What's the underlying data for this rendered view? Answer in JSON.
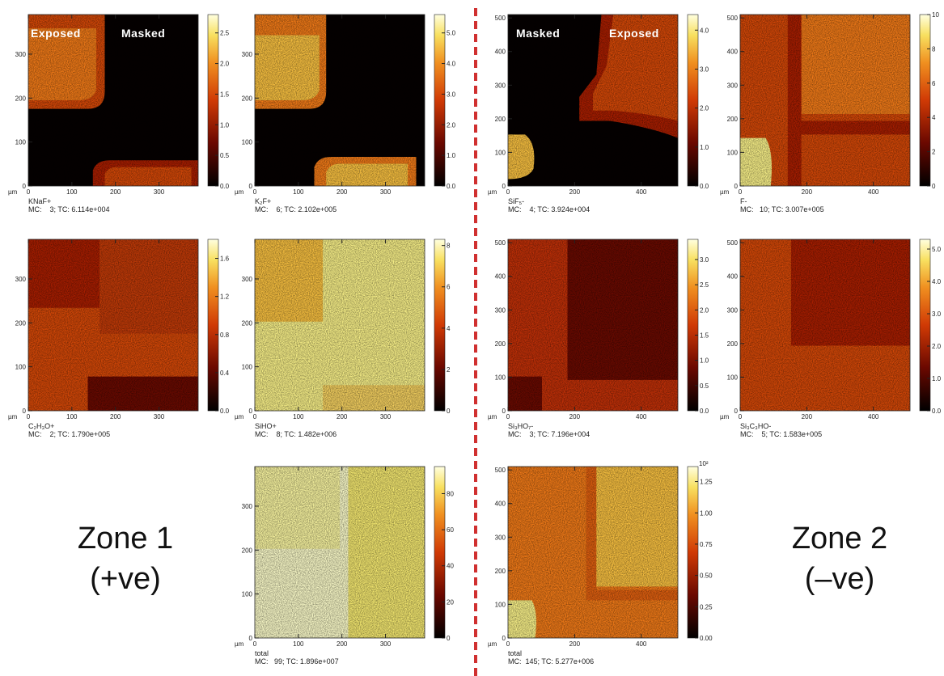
{
  "panels": [
    {
      "name": "KNaF+",
      "counts": "MC:    3; TC: 6.114e+004",
      "unit": "µm",
      "xticks": [
        "0",
        "100",
        "200",
        "300"
      ],
      "yticks": [
        "0",
        "100",
        "200",
        "300"
      ],
      "axis_range": [
        0,
        390
      ],
      "colorbar_ticks": [
        "0.0",
        "0.5",
        "1.0",
        "1.5",
        "2.0",
        "2.5"
      ],
      "colorbar_range": [
        0,
        2.8
      ],
      "overlay": [
        "Exposed",
        "Masked"
      ]
    },
    {
      "name": "K₂F+",
      "counts": "MC:    6; TC: 2.102e+005",
      "unit": "µm",
      "xticks": [
        "0",
        "100",
        "200",
        "300"
      ],
      "yticks": [
        "0",
        "100",
        "200",
        "300"
      ],
      "axis_range": [
        0,
        390
      ],
      "colorbar_ticks": [
        "0.0",
        "1.0",
        "2.0",
        "3.0",
        "4.0",
        "5.0"
      ],
      "colorbar_range": [
        0,
        5.6
      ]
    },
    {
      "name": "SiF₅-",
      "counts": "MC:    4; TC: 3.924e+004",
      "unit": "µm",
      "xticks": [
        "0",
        "200",
        "400"
      ],
      "yticks": [
        "0",
        "100",
        "200",
        "300",
        "400",
        "500"
      ],
      "axis_range": [
        0,
        510
      ],
      "colorbar_ticks": [
        "0.0",
        "1.0",
        "2.0",
        "3.0",
        "4.0"
      ],
      "colorbar_range": [
        0,
        4.4
      ],
      "overlay": [
        "Masked",
        "Exposed"
      ]
    },
    {
      "name": "F-",
      "counts": "MC:   10; TC: 3.007e+005",
      "unit": "µm",
      "xticks": [
        "0",
        "200",
        "400"
      ],
      "yticks": [
        "0",
        "100",
        "200",
        "300",
        "400",
        "500"
      ],
      "axis_range": [
        0,
        510
      ],
      "colorbar_ticks": [
        "0",
        "2",
        "4",
        "6",
        "8",
        "10"
      ],
      "colorbar_range": [
        0,
        10
      ]
    },
    {
      "name": "C₂H₃O+",
      "counts": "MC:    2; TC: 1.790e+005",
      "unit": "µm",
      "xticks": [
        "0",
        "100",
        "200",
        "300"
      ],
      "yticks": [
        "0",
        "100",
        "200",
        "300"
      ],
      "axis_range": [
        0,
        390
      ],
      "colorbar_ticks": [
        "0.0",
        "0.4",
        "0.8",
        "1.2",
        "1.6"
      ],
      "colorbar_range": [
        0,
        1.8
      ]
    },
    {
      "name": "SiHO+",
      "counts": "MC:    8; TC: 1.482e+006",
      "unit": "µm",
      "xticks": [
        "0",
        "100",
        "200",
        "300"
      ],
      "yticks": [
        "0",
        "100",
        "200",
        "300"
      ],
      "axis_range": [
        0,
        390
      ],
      "colorbar_ticks": [
        "0",
        "2",
        "4",
        "6",
        "8"
      ],
      "colorbar_range": [
        0,
        8.3
      ]
    },
    {
      "name": "Si₃HO₇-",
      "counts": "MC:    3; TC: 7.196e+004",
      "unit": "µm",
      "xticks": [
        "0",
        "200",
        "400"
      ],
      "yticks": [
        "0",
        "100",
        "200",
        "300",
        "400",
        "500"
      ],
      "axis_range": [
        0,
        510
      ],
      "colorbar_ticks": [
        "0.0",
        "0.5",
        "1.0",
        "1.5",
        "2.0",
        "2.5",
        "3.0"
      ],
      "colorbar_range": [
        0,
        3.4
      ]
    },
    {
      "name": "Si₃C₃HO-",
      "counts": "MC:    5; TC: 1.583e+005",
      "unit": "µm",
      "xticks": [
        "0",
        "200",
        "400"
      ],
      "yticks": [
        "0",
        "100",
        "200",
        "300",
        "400",
        "500"
      ],
      "axis_range": [
        0,
        510
      ],
      "colorbar_ticks": [
        "0.0",
        "1.0",
        "2.0",
        "3.0",
        "4.0",
        "5.0"
      ],
      "colorbar_range": [
        0,
        5.3
      ]
    },
    {
      "name": "total",
      "counts": "MC:   99; TC: 1.896e+007",
      "unit": "µm",
      "xticks": [
        "0",
        "100",
        "200",
        "300"
      ],
      "yticks": [
        "0",
        "100",
        "200",
        "300"
      ],
      "axis_range": [
        0,
        390
      ],
      "colorbar_ticks": [
        "0",
        "20",
        "40",
        "60",
        "80"
      ],
      "colorbar_range": [
        0,
        95
      ]
    },
    {
      "name": "total",
      "counts": "MC:  145; TC: 5.277e+006",
      "unit": "µm",
      "xticks": [
        "0",
        "200",
        "400"
      ],
      "yticks": [
        "0",
        "100",
        "200",
        "300",
        "400",
        "500"
      ],
      "axis_range": [
        0,
        510
      ],
      "colorbar_ticks": [
        "0.00",
        "0.25",
        "0.50",
        "0.75",
        "1.00",
        "1.25"
      ],
      "colorbar_range": [
        0,
        1.37
      ],
      "colorbar_scale": "10²"
    }
  ],
  "zones": [
    {
      "title": "Zone 1",
      "polarity": "(+ve)"
    },
    {
      "title": "Zone 2",
      "polarity": "(–ve)"
    }
  ]
}
